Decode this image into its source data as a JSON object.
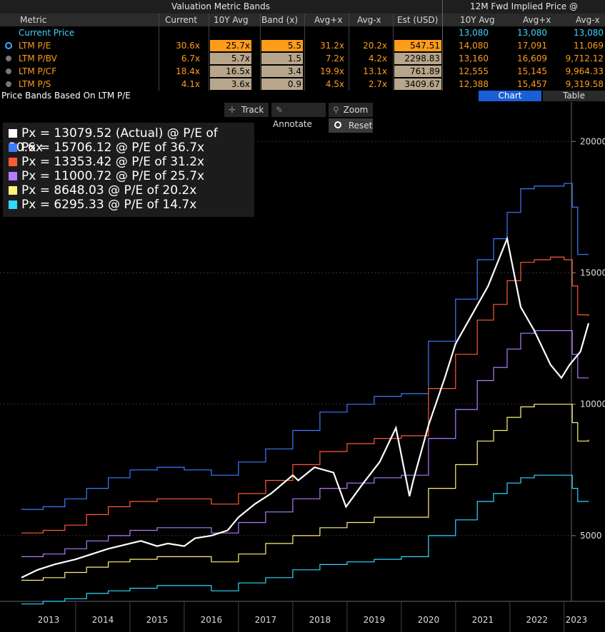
{
  "header": {
    "section_title": "Valuation Metric Bands",
    "right_title": "12M Fwd Implied Price @",
    "columns": [
      "Metric",
      "Current",
      "10Y Avg",
      "Band (x)",
      "Avg+x",
      "Avg-x",
      "Est (USD)",
      "10Y Avg",
      "Avg+x",
      "Avg-x"
    ]
  },
  "current_price_row": {
    "label": "Current Price",
    "avg": "13,080",
    "avgpx": "13,080",
    "avgmx": "13,080"
  },
  "rows": [
    {
      "label": "LTM P/E",
      "current": "30.6x",
      "avg10": "25.7x",
      "band": "5.5",
      "avgp": "31.2x",
      "avgm": "20.2x",
      "est": "547.51",
      "i_avg": "14,080",
      "i_avgp": "17,091",
      "i_avgm": "11,069",
      "selected": true
    },
    {
      "label": "LTM P/BV",
      "current": "6.7x",
      "avg10": "5.7x",
      "band": "1.5",
      "avgp": "7.2x",
      "avgm": "4.2x",
      "est": "2298.83",
      "i_avg": "13,160",
      "i_avgp": "16,609",
      "i_avgm": "9,712.12",
      "selected": false
    },
    {
      "label": "LTM P/CF",
      "current": "18.4x",
      "avg10": "16.5x",
      "band": "3.4",
      "avgp": "19.9x",
      "avgm": "13.1x",
      "est": "761.89",
      "i_avg": "12,555",
      "i_avgp": "15,145",
      "i_avgm": "9,964.33",
      "selected": false
    },
    {
      "label": "LTM P/S",
      "current": "4.1x",
      "avg10": "3.6x",
      "band": "0.9",
      "avgp": "4.5x",
      "avgm": "2.7x",
      "est": "3409.67",
      "i_avg": "12,388",
      "i_avgp": "15,457",
      "i_avgm": "9,319.58",
      "selected": false
    }
  ],
  "title_bar": {
    "title": "Price Bands Based On LTM P/E",
    "tab_chart": "Chart",
    "tab_table": "Table"
  },
  "toolbar": {
    "track": "Track",
    "annotate": "Annotate",
    "zoom": "Zoom",
    "reset": "Reset"
  },
  "legend": [
    {
      "text": "Px = 13079.52 (Actual) @ P/E of 30.6x",
      "color": "#ffffff"
    },
    {
      "text": "Px = 15706.12 @ P/E of 36.7x",
      "color": "#3c7cff"
    },
    {
      "text": "Px = 13353.42 @ P/E of 31.2x",
      "color": "#ff5a36"
    },
    {
      "text": "Px = 11000.72 @ P/E of 25.7x",
      "color": "#b07cff"
    },
    {
      "text": "Px = 8648.03 @ P/E of 20.2x",
      "color": "#fff27a"
    },
    {
      "text": "Px = 6295.33 @ P/E of 14.7x",
      "color": "#2fd8ff"
    }
  ],
  "chart_data": {
    "type": "line",
    "title": "Price Bands Based On LTM P/E",
    "x_ticks": [
      "2013",
      "2014",
      "2015",
      "2016",
      "2017",
      "2018",
      "2019",
      "2020",
      "2021",
      "2022",
      "2023"
    ],
    "y_ticks": [
      5000,
      10000,
      15000,
      20000
    ],
    "ylim": [
      2500,
      21500
    ],
    "xlim": [
      2013.0,
      2023.45
    ],
    "grid": true,
    "legend_position": "top-left",
    "series": [
      {
        "color": "#ffffff",
        "x": [
          2013.0,
          2013.3,
          2013.6,
          2014.0,
          2014.3,
          2014.6,
          2015.0,
          2015.2,
          2015.5,
          2015.7,
          2016.0,
          2016.2,
          2016.5,
          2016.8,
          2017.0,
          2017.3,
          2017.6,
          2018.0,
          2018.1,
          2018.4,
          2018.75,
          2018.98,
          2019.3,
          2019.6,
          2019.9,
          2020.15,
          2020.22,
          2020.5,
          2020.8,
          2021.0,
          2021.3,
          2021.6,
          2021.95,
          2022.2,
          2022.45,
          2022.75,
          2022.95,
          2023.1,
          2023.3,
          2023.45
        ],
        "y": [
          3400,
          3700,
          3900,
          4100,
          4300,
          4500,
          4700,
          4800,
          4600,
          4700,
          4600,
          4900,
          5000,
          5200,
          5700,
          6200,
          6600,
          7300,
          7100,
          7600,
          7400,
          6100,
          7000,
          7800,
          9100,
          6500,
          7100,
          9200,
          11000,
          12300,
          13400,
          14500,
          16300,
          13700,
          12800,
          11500,
          11000,
          11500,
          12000,
          13080
        ]
      },
      {
        "color": "#3c7cff",
        "x": [
          2013.0,
          2013.4,
          2013.8,
          2014.2,
          2014.6,
          2015.0,
          2015.5,
          2016.0,
          2016.5,
          2017.0,
          2017.5,
          2018.0,
          2018.5,
          2019.0,
          2019.5,
          2020.0,
          2020.5,
          2021.0,
          2021.4,
          2021.7,
          2021.95,
          2022.2,
          2022.45,
          2022.75,
          2023.0,
          2023.15,
          2023.25,
          2023.45
        ],
        "y": [
          6000,
          6100,
          6400,
          6800,
          7200,
          7500,
          7600,
          7500,
          7300,
          7800,
          8300,
          9000,
          9700,
          10000,
          10300,
          10400,
          12400,
          14000,
          15500,
          16300,
          17300,
          18200,
          18300,
          18300,
          18400,
          17500,
          15700,
          15706
        ]
      },
      {
        "color": "#ff5a36",
        "x": [
          2013.0,
          2013.4,
          2013.8,
          2014.2,
          2014.6,
          2015.0,
          2015.5,
          2016.0,
          2016.5,
          2017.0,
          2017.5,
          2018.0,
          2018.5,
          2019.0,
          2019.5,
          2020.0,
          2020.5,
          2021.0,
          2021.4,
          2021.7,
          2021.95,
          2022.2,
          2022.45,
          2022.75,
          2023.0,
          2023.15,
          2023.25,
          2023.45
        ],
        "y": [
          5100,
          5200,
          5400,
          5800,
          6100,
          6300,
          6400,
          6400,
          6200,
          6600,
          7100,
          7700,
          8200,
          8500,
          8700,
          8800,
          10600,
          11900,
          13200,
          13800,
          14700,
          15400,
          15500,
          15600,
          15500,
          14500,
          13400,
          13353
        ]
      },
      {
        "color": "#b07cff",
        "x": [
          2013.0,
          2013.4,
          2013.8,
          2014.2,
          2014.6,
          2015.0,
          2015.5,
          2016.0,
          2016.5,
          2017.0,
          2017.5,
          2018.0,
          2018.5,
          2019.0,
          2019.5,
          2020.0,
          2020.5,
          2021.0,
          2021.4,
          2021.7,
          2021.95,
          2022.2,
          2022.45,
          2022.75,
          2023.0,
          2023.15,
          2023.25,
          2023.45
        ],
        "y": [
          4200,
          4300,
          4500,
          4800,
          5000,
          5200,
          5300,
          5300,
          5100,
          5500,
          5900,
          6400,
          6800,
          7000,
          7200,
          7300,
          8700,
          9800,
          10900,
          11400,
          12100,
          12700,
          12800,
          12800,
          12800,
          11900,
          11000,
          11000
        ]
      },
      {
        "color": "#fff27a",
        "x": [
          2013.0,
          2013.4,
          2013.8,
          2014.2,
          2014.6,
          2015.0,
          2015.5,
          2016.0,
          2016.5,
          2017.0,
          2017.5,
          2018.0,
          2018.5,
          2019.0,
          2019.5,
          2020.0,
          2020.5,
          2021.0,
          2021.4,
          2021.7,
          2021.95,
          2022.2,
          2022.45,
          2022.75,
          2023.0,
          2023.15,
          2023.25,
          2023.45
        ],
        "y": [
          3300,
          3400,
          3600,
          3800,
          4000,
          4100,
          4200,
          4200,
          4000,
          4300,
          4700,
          5000,
          5300,
          5500,
          5700,
          5700,
          6800,
          7700,
          8600,
          9000,
          9500,
          9900,
          10000,
          10000,
          10000,
          9300,
          8600,
          8648
        ]
      },
      {
        "color": "#2fd8ff",
        "x": [
          2013.0,
          2013.4,
          2013.8,
          2014.2,
          2014.6,
          2015.0,
          2015.5,
          2016.0,
          2016.5,
          2017.0,
          2017.5,
          2018.0,
          2018.5,
          2019.0,
          2019.5,
          2020.0,
          2020.5,
          2021.0,
          2021.4,
          2021.7,
          2021.95,
          2022.2,
          2022.45,
          2022.75,
          2023.0,
          2023.15,
          2023.25,
          2023.45
        ],
        "y": [
          2400,
          2500,
          2600,
          2800,
          2900,
          3000,
          3100,
          3100,
          2900,
          3200,
          3400,
          3700,
          3900,
          4000,
          4100,
          4200,
          5000,
          5600,
          6300,
          6600,
          7000,
          7200,
          7300,
          7300,
          7300,
          6800,
          6300,
          6295
        ]
      }
    ]
  }
}
